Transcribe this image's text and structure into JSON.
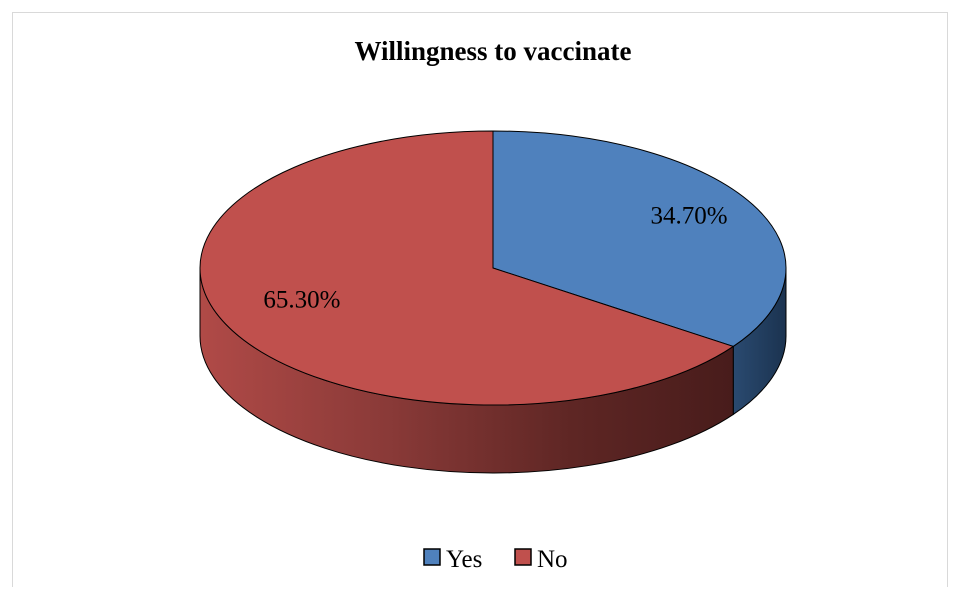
{
  "chart_data": {
    "type": "pie",
    "title": "Willingness to vaccinate",
    "categories": [
      "Yes",
      "No"
    ],
    "values": [
      34.7,
      65.3
    ],
    "labels": [
      "34.70%",
      "65.30%"
    ],
    "colors": [
      "#4f81bd",
      "#c0504d"
    ],
    "legend_position": "bottom",
    "three_d": true
  }
}
